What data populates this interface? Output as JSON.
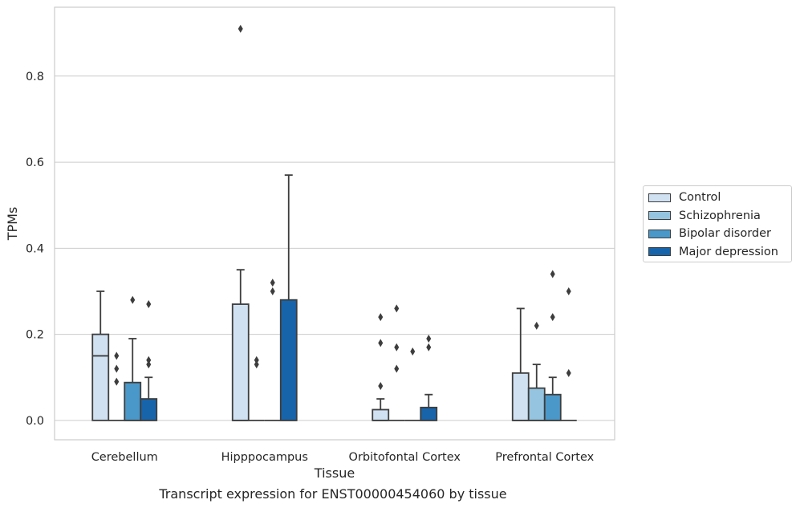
{
  "chart_data": {
    "type": "box",
    "xlabel": "Tissue",
    "ylabel": "TPMs",
    "caption": "Transcript expression for ENST00000454060 by tissue",
    "ylim": [
      -0.045,
      0.96
    ],
    "yticks": [
      0.0,
      0.2,
      0.4,
      0.6,
      0.8
    ],
    "ytick_labels": [
      "0.0",
      "0.2",
      "0.4",
      "0.6",
      "0.8"
    ],
    "grid": "horizontal",
    "legend_position": "right",
    "categories": [
      "Cerebellum",
      "Hipppocampus",
      "Orbitofontal Cortex",
      "Prefrontal Cortex"
    ],
    "series": [
      {
        "name": "Control",
        "color": "#d0e1f2",
        "boxes": [
          {
            "q1": 0.0,
            "median": 0.15,
            "q3": 0.2,
            "whisker_low": 0.0,
            "whisker_high": 0.3,
            "outliers": []
          },
          {
            "q1": 0.0,
            "median": 0.0,
            "q3": 0.27,
            "whisker_low": 0.0,
            "whisker_high": 0.35,
            "outliers": [
              0.91
            ]
          },
          {
            "q1": 0.0,
            "median": 0.0,
            "q3": 0.025,
            "whisker_low": 0.0,
            "whisker_high": 0.05,
            "outliers": [
              0.08,
              0.18,
              0.24
            ]
          },
          {
            "q1": 0.0,
            "median": 0.0,
            "q3": 0.11,
            "whisker_low": 0.0,
            "whisker_high": 0.26,
            "outliers": []
          }
        ]
      },
      {
        "name": "Schizophrenia",
        "color": "#94c4df",
        "boxes": [
          {
            "q1": 0.0,
            "median": 0.0,
            "q3": 0.0,
            "whisker_low": 0.0,
            "whisker_high": 0.0,
            "outliers": [
              0.09,
              0.12,
              0.15
            ]
          },
          {
            "q1": 0.0,
            "median": 0.0,
            "q3": 0.0,
            "whisker_low": 0.0,
            "whisker_high": 0.0,
            "outliers": [
              0.13,
              0.14
            ]
          },
          {
            "q1": 0.0,
            "median": 0.0,
            "q3": 0.0,
            "whisker_low": 0.0,
            "whisker_high": 0.0,
            "outliers": [
              0.12,
              0.17,
              0.26
            ]
          },
          {
            "q1": 0.0,
            "median": 0.0,
            "q3": 0.075,
            "whisker_low": 0.0,
            "whisker_high": 0.13,
            "outliers": [
              0.22
            ]
          }
        ]
      },
      {
        "name": "Bipolar disorder",
        "color": "#4a98c9",
        "boxes": [
          {
            "q1": 0.0,
            "median": 0.0,
            "q3": 0.088,
            "whisker_low": 0.0,
            "whisker_high": 0.19,
            "outliers": [
              0.28
            ]
          },
          {
            "q1": 0.0,
            "median": 0.0,
            "q3": 0.0,
            "whisker_low": 0.0,
            "whisker_high": 0.0,
            "outliers": [
              0.3,
              0.32
            ]
          },
          {
            "q1": 0.0,
            "median": 0.0,
            "q3": 0.0,
            "whisker_low": 0.0,
            "whisker_high": 0.0,
            "outliers": [
              0.16
            ]
          },
          {
            "q1": 0.0,
            "median": 0.0,
            "q3": 0.06,
            "whisker_low": 0.0,
            "whisker_high": 0.1,
            "outliers": [
              0.24,
              0.34
            ]
          }
        ]
      },
      {
        "name": "Major depression",
        "color": "#1764ab",
        "boxes": [
          {
            "q1": 0.0,
            "median": 0.0,
            "q3": 0.05,
            "whisker_low": 0.0,
            "whisker_high": 0.1,
            "outliers": [
              0.13,
              0.14,
              0.27
            ]
          },
          {
            "q1": 0.0,
            "median": 0.0,
            "q3": 0.28,
            "whisker_low": 0.0,
            "whisker_high": 0.57,
            "outliers": []
          },
          {
            "q1": 0.0,
            "median": 0.0,
            "q3": 0.03,
            "whisker_low": 0.0,
            "whisker_high": 0.06,
            "outliers": [
              0.17,
              0.19
            ]
          },
          {
            "q1": 0.0,
            "median": 0.0,
            "q3": 0.0,
            "whisker_low": 0.0,
            "whisker_high": 0.0,
            "outliers": [
              0.11,
              0.3
            ]
          }
        ]
      }
    ]
  }
}
